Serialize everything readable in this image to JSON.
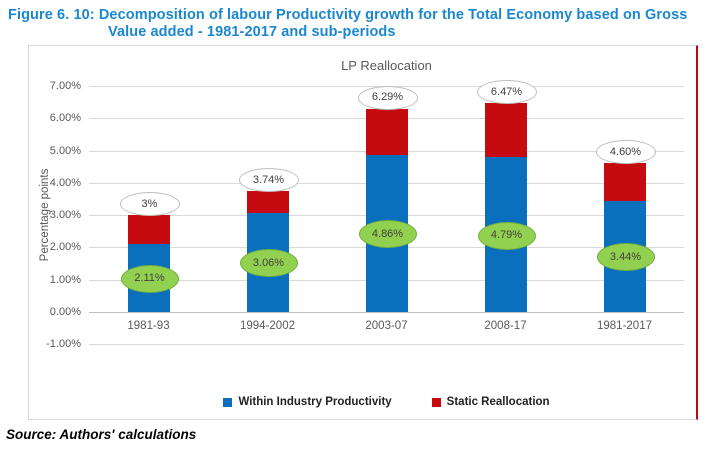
{
  "figure_title": {
    "line1": "Figure 6. 10: Decomposition of labour Productivity growth for the Total Economy based on Gross",
    "line2": "Value added - 1981-2017 and sub-periods"
  },
  "source_note": "Source: Authors' calculations",
  "chart_data": {
    "type": "bar",
    "stacked": true,
    "title": "LP Reallocation",
    "xlabel": "",
    "ylabel": "Percentage points",
    "categories": [
      "1981-93",
      "1994-2002",
      "2003-07",
      "2008-17",
      "1981-2017"
    ],
    "series": [
      {
        "name": "Within Industry Productivity",
        "color": "#0a70bd",
        "values": [
          2.11,
          3.06,
          4.86,
          4.79,
          3.44
        ]
      },
      {
        "name": "Static Reallocation",
        "color": "#c50b0f",
        "values": [
          0.89,
          0.68,
          1.43,
          1.68,
          1.16
        ]
      }
    ],
    "totals": [
      3.0,
      3.74,
      6.29,
      6.47,
      4.6
    ],
    "total_labels": [
      "3%",
      "3.74%",
      "6.29%",
      "6.47%",
      "4.60%"
    ],
    "within_labels": [
      "2.11%",
      "3.06%",
      "4.86%",
      "4.79%",
      "3.44%"
    ],
    "ylim": [
      -1,
      7
    ],
    "y_ticks": [
      "7.00%",
      "6.00%",
      "5.00%",
      "4.00%",
      "3.00%",
      "2.00%",
      "1.00%",
      "0.00%",
      "-1.00%"
    ],
    "grid": true,
    "legend_position": "bottom",
    "callout_styles": {
      "total_fill": "#ffffff",
      "total_border": "#bfbfbf",
      "within_fill": "#92d050",
      "within_border": "#6fae3d",
      "text_color": "#404040"
    }
  }
}
